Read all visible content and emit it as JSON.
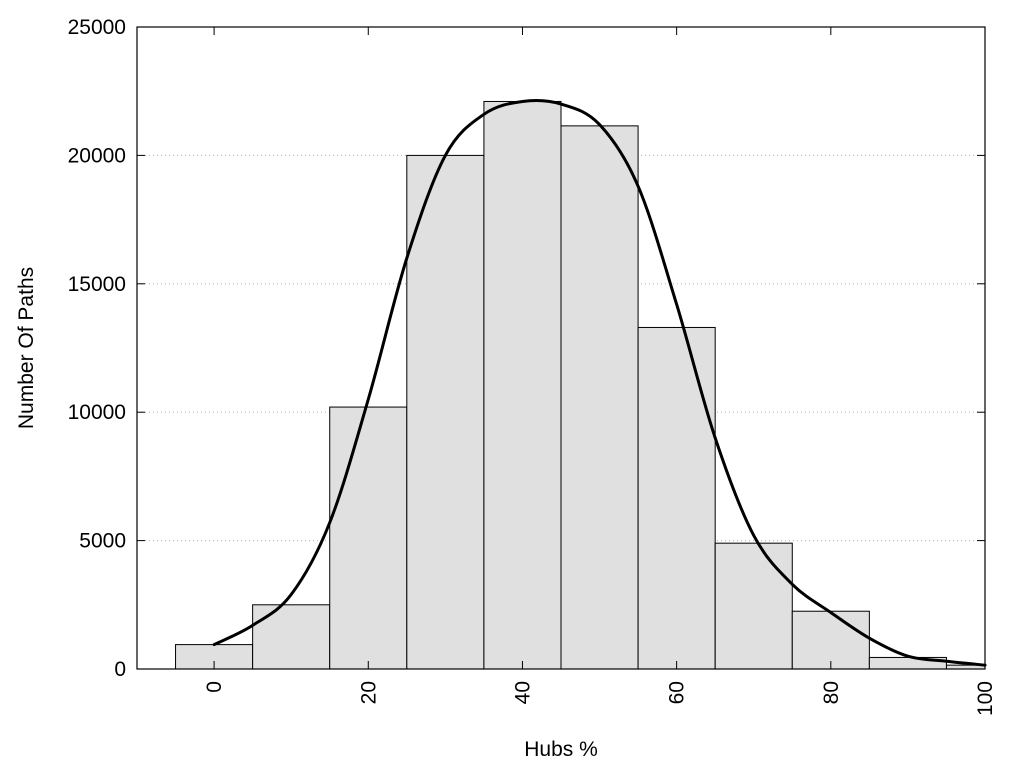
{
  "chart_data": {
    "type": "bar",
    "title": "",
    "xlabel": "Hubs %",
    "ylabel": "Number Of Paths",
    "xlim": [
      -10,
      100
    ],
    "ylim": [
      0,
      25000
    ],
    "grid": "horizontal dotted",
    "bin_width": 10,
    "bar_fill": "#e0e0e0",
    "bar_stroke": "#000000",
    "line_color": "#000000",
    "x_ticks": [
      0,
      20,
      40,
      60,
      80,
      100
    ],
    "x_tick_labels": [
      "0",
      "20",
      "40",
      "60",
      "80",
      "100"
    ],
    "y_ticks": [
      0,
      5000,
      10000,
      15000,
      20000,
      25000
    ],
    "y_tick_labels": [
      "0",
      "5000",
      "10000",
      "15000",
      "20000",
      "25000"
    ],
    "bins": [
      {
        "center": 0,
        "value": 950
      },
      {
        "center": 10,
        "value": 2500
      },
      {
        "center": 20,
        "value": 10200
      },
      {
        "center": 30,
        "value": 20000
      },
      {
        "center": 40,
        "value": 22100
      },
      {
        "center": 50,
        "value": 21150
      },
      {
        "center": 60,
        "value": 13300
      },
      {
        "center": 70,
        "value": 4900
      },
      {
        "center": 80,
        "value": 2250
      },
      {
        "center": 90,
        "value": 450
      },
      {
        "center": 100,
        "value": 150
      }
    ],
    "curve": [
      [
        0,
        950
      ],
      [
        5,
        1700
      ],
      [
        10,
        2900
      ],
      [
        15,
        5700
      ],
      [
        20,
        10500
      ],
      [
        25,
        16000
      ],
      [
        30,
        20000
      ],
      [
        35,
        21600
      ],
      [
        40,
        22100
      ],
      [
        45,
        22000
      ],
      [
        50,
        21200
      ],
      [
        55,
        18800
      ],
      [
        60,
        14200
      ],
      [
        65,
        9000
      ],
      [
        70,
        5200
      ],
      [
        75,
        3300
      ],
      [
        80,
        2200
      ],
      [
        85,
        1200
      ],
      [
        90,
        500
      ],
      [
        95,
        300
      ],
      [
        100,
        150
      ]
    ]
  }
}
